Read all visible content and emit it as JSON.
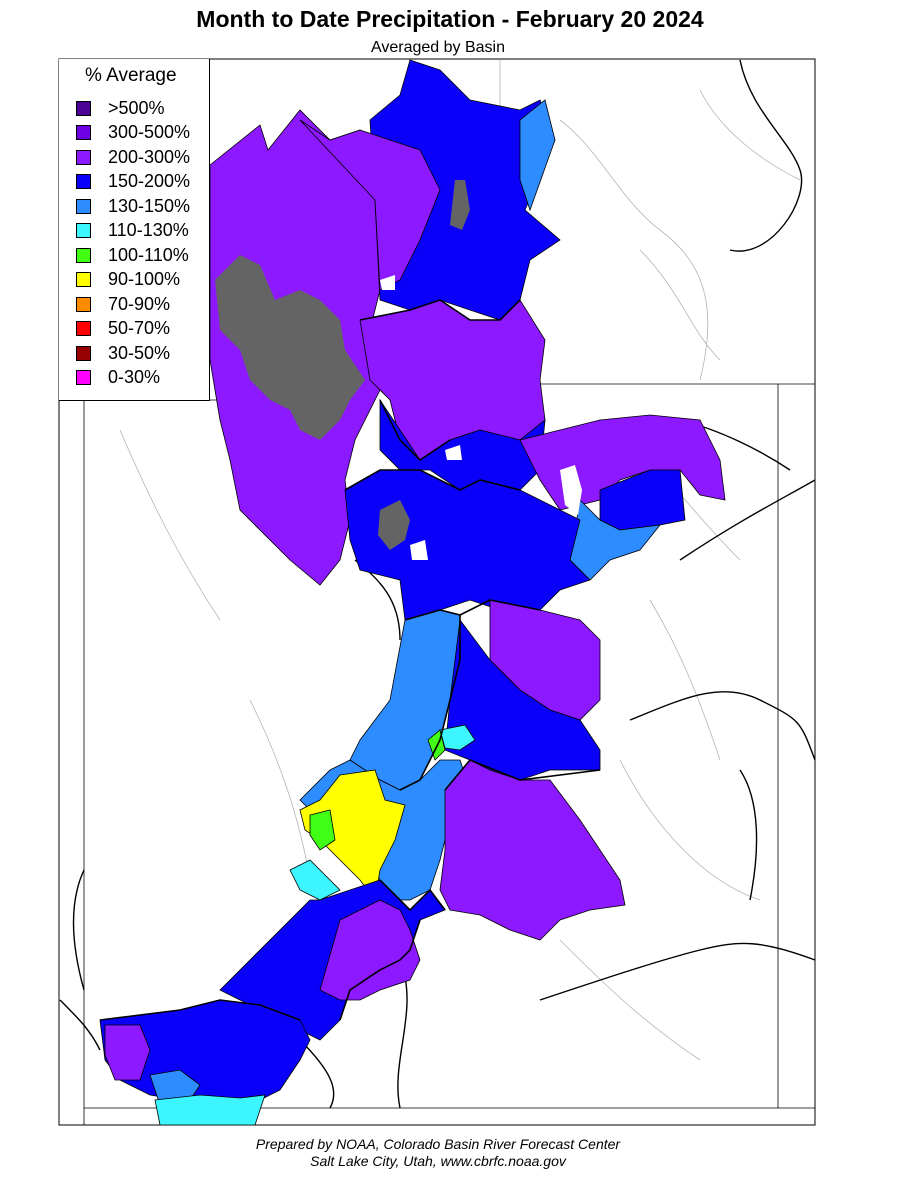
{
  "header": {
    "title": "Month to Date Precipitation - February 20 2024",
    "subtitle": "Averaged by Basin"
  },
  "legend": {
    "title": "% Average",
    "items": [
      {
        "label": ">500%",
        "color": "#4b0096"
      },
      {
        "label": "300-500%",
        "color": "#6e00e6"
      },
      {
        "label": "200-300%",
        "color": "#8c19ff"
      },
      {
        "label": "150-200%",
        "color": "#0a00fa"
      },
      {
        "label": "130-150%",
        "color": "#2d8cff"
      },
      {
        "label": "110-130%",
        "color": "#3cf5ff"
      },
      {
        "label": "100-110%",
        "color": "#41ff14"
      },
      {
        "label": "90-100%",
        "color": "#ffff00"
      },
      {
        "label": "70-90%",
        "color": "#ff8c00"
      },
      {
        "label": "50-70%",
        "color": "#ff0000"
      },
      {
        "label": "30-50%",
        "color": "#960000"
      },
      {
        "label": "0-30%",
        "color": "#ff00ff"
      }
    ]
  },
  "map_colors": {
    "no_data": "#646464",
    "state_border": "#000000",
    "rivers": "#b4b4b4"
  },
  "footer": {
    "line1": "Prepared by NOAA, Colorado Basin River Forecast Center",
    "line2": "Salt Lake City, Utah, www.cbrfc.noaa.gov"
  }
}
